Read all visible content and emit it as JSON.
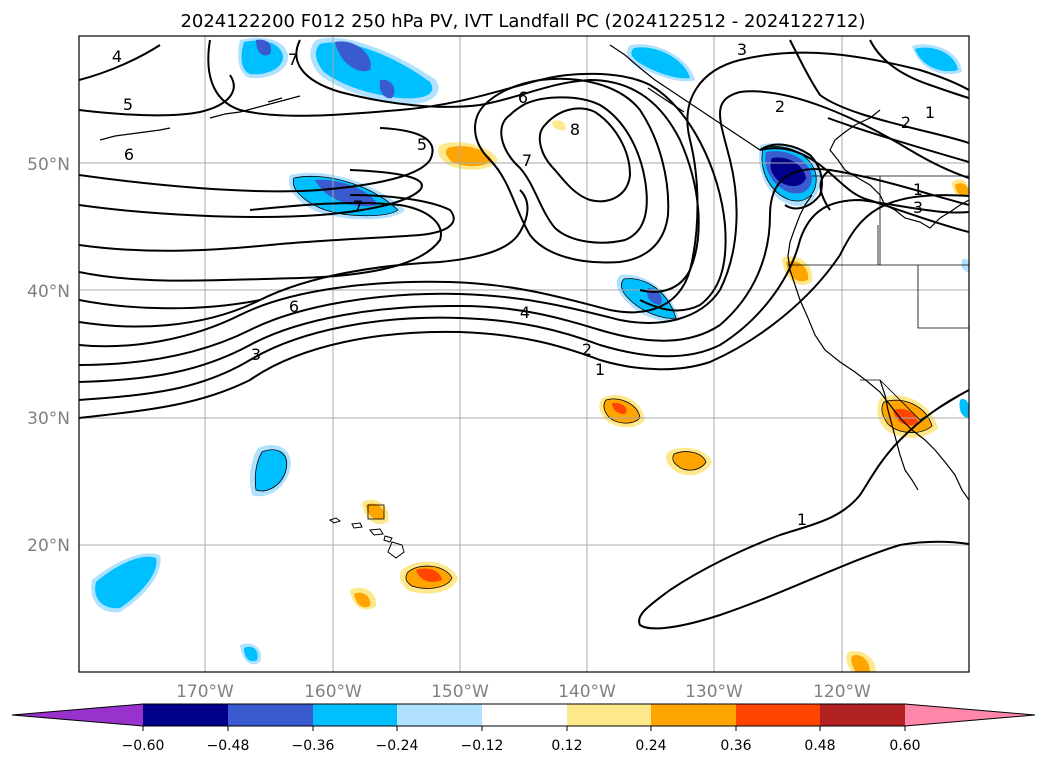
{
  "title": "2024122200 F012 250 hPa PV, IVT Landfall PC (2024122512 - 2024122712)",
  "map": {
    "lon_ticks": [
      "170°W",
      "160°W",
      "150°W",
      "140°W",
      "130°W",
      "120°W"
    ],
    "lat_ticks": [
      "50°N",
      "40°N",
      "30°N",
      "20°N"
    ],
    "extent": {
      "lon_min": -180,
      "lon_max": -110,
      "lat_min": 10,
      "lat_max": 60
    },
    "grid": true,
    "contour_labels": [
      "4",
      "5",
      "6",
      "7",
      "5",
      "6",
      "7",
      "8",
      "7",
      "6",
      "3",
      "4",
      "2",
      "1",
      "3",
      "2",
      "1",
      "2",
      "1",
      "3",
      "1"
    ]
  },
  "colorbar": {
    "ticks": [
      "−0.60",
      "−0.48",
      "−0.36",
      "−0.24",
      "−0.12",
      "0.12",
      "0.24",
      "0.36",
      "0.48",
      "0.60"
    ],
    "colors": [
      "#9932cc",
      "#00008b",
      "#3a5bd0",
      "#00bfff",
      "#b0e2ff",
      "#ffffff",
      "#fde88c",
      "#ffa500",
      "#ff4500",
      "#b22222",
      "#ff88aa"
    ]
  }
}
